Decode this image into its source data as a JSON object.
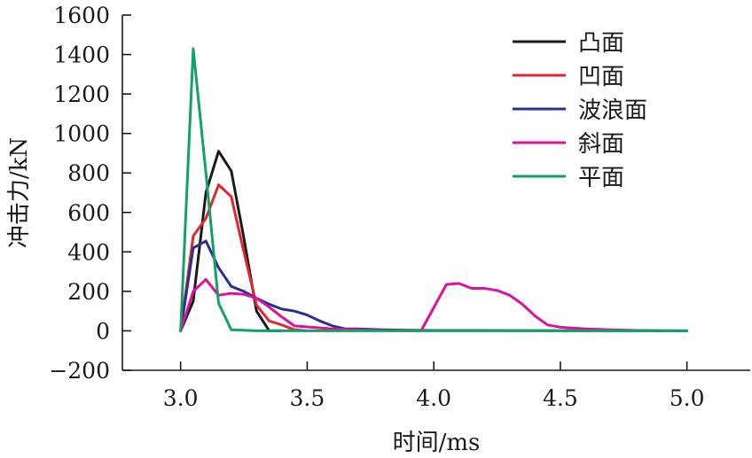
{
  "chart_data": {
    "type": "line",
    "title": "",
    "xlabel": "时间/ms",
    "ylabel": "冲击力/kN",
    "xlim": [
      2.77,
      5.25
    ],
    "ylim": [
      -200,
      1600
    ],
    "xticks": [
      3.0,
      3.5,
      4.0,
      4.5,
      5.0
    ],
    "xtick_labels": [
      "3.0",
      "3.5",
      "4.0",
      "4.5",
      "5.0"
    ],
    "yticks": [
      -200,
      0,
      200,
      400,
      600,
      800,
      1000,
      1200,
      1400,
      1600
    ],
    "ytick_labels": [
      "−200",
      "0",
      "200",
      "400",
      "600",
      "800",
      "1000",
      "1200",
      "1400",
      "1600"
    ],
    "grid": false,
    "legend_position": "top-right",
    "series": [
      {
        "name": "凸面",
        "color": "#1a1a1a",
        "points": [
          [
            3.0,
            0
          ],
          [
            3.05,
            150
          ],
          [
            3.1,
            700
          ],
          [
            3.15,
            910
          ],
          [
            3.2,
            810
          ],
          [
            3.25,
            470
          ],
          [
            3.3,
            100
          ],
          [
            3.35,
            0
          ],
          [
            3.4,
            0
          ]
        ]
      },
      {
        "name": "凹面",
        "color": "#e0262e",
        "points": [
          [
            3.0,
            0
          ],
          [
            3.05,
            480
          ],
          [
            3.1,
            570
          ],
          [
            3.15,
            740
          ],
          [
            3.2,
            680
          ],
          [
            3.25,
            400
          ],
          [
            3.3,
            130
          ],
          [
            3.35,
            50
          ],
          [
            3.4,
            30
          ],
          [
            3.45,
            5
          ],
          [
            3.5,
            0
          ]
        ]
      },
      {
        "name": "波浪面",
        "color": "#2b2f8f",
        "points": [
          [
            3.0,
            0
          ],
          [
            3.05,
            420
          ],
          [
            3.1,
            455
          ],
          [
            3.15,
            320
          ],
          [
            3.2,
            225
          ],
          [
            3.25,
            200
          ],
          [
            3.3,
            165
          ],
          [
            3.35,
            135
          ],
          [
            3.4,
            110
          ],
          [
            3.45,
            100
          ],
          [
            3.5,
            80
          ],
          [
            3.55,
            50
          ],
          [
            3.6,
            25
          ],
          [
            3.65,
            10
          ],
          [
            3.7,
            10
          ],
          [
            3.8,
            5
          ],
          [
            3.9,
            3
          ],
          [
            4.0,
            2
          ],
          [
            5.0,
            0
          ]
        ]
      },
      {
        "name": "斜面",
        "color": "#e0109c",
        "points": [
          [
            3.0,
            0
          ],
          [
            3.05,
            200
          ],
          [
            3.1,
            260
          ],
          [
            3.15,
            180
          ],
          [
            3.2,
            190
          ],
          [
            3.25,
            185
          ],
          [
            3.3,
            165
          ],
          [
            3.35,
            120
          ],
          [
            3.4,
            70
          ],
          [
            3.45,
            25
          ],
          [
            3.5,
            20
          ],
          [
            3.6,
            10
          ],
          [
            3.7,
            5
          ],
          [
            3.8,
            2
          ],
          [
            3.95,
            0
          ],
          [
            4.05,
            235
          ],
          [
            4.1,
            240
          ],
          [
            4.15,
            215
          ],
          [
            4.2,
            215
          ],
          [
            4.25,
            205
          ],
          [
            4.3,
            180
          ],
          [
            4.35,
            135
          ],
          [
            4.4,
            75
          ],
          [
            4.45,
            30
          ],
          [
            4.5,
            18
          ],
          [
            4.6,
            10
          ],
          [
            4.7,
            5
          ],
          [
            4.8,
            2
          ],
          [
            4.95,
            0
          ]
        ]
      },
      {
        "name": "平面",
        "color": "#12a266",
        "points": [
          [
            3.0,
            0
          ],
          [
            3.05,
            1430
          ],
          [
            3.1,
            800
          ],
          [
            3.15,
            140
          ],
          [
            3.2,
            5
          ],
          [
            3.3,
            0
          ],
          [
            3.5,
            0
          ],
          [
            4.0,
            0
          ],
          [
            4.5,
            0
          ],
          [
            5.0,
            0
          ]
        ]
      }
    ]
  }
}
